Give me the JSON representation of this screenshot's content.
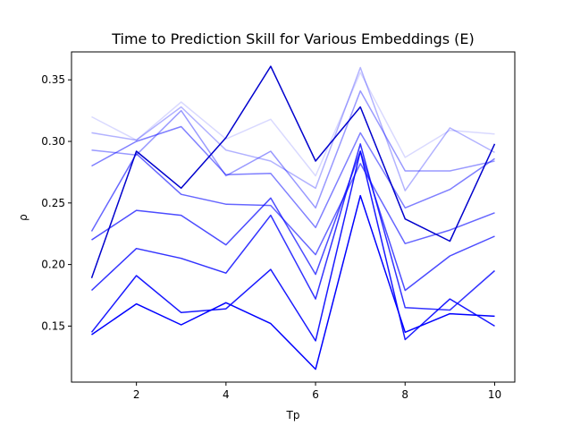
{
  "chart_data": {
    "type": "line",
    "title": "Time to Prediction Skill for Various Embeddings (E)",
    "xlabel": "Tp",
    "ylabel": "ρ",
    "xlim": [
      0.55,
      10.45
    ],
    "ylim": [
      0.1045,
      0.3727
    ],
    "x_ticks": [
      2,
      4,
      6,
      8,
      10
    ],
    "y_ticks": [
      0.15,
      0.2,
      0.25,
      0.3,
      0.35
    ],
    "grid": false,
    "legend": "none",
    "x": [
      1,
      2,
      3,
      4,
      5,
      6,
      7,
      8,
      9,
      10
    ],
    "series": [
      {
        "color": "#0000ff",
        "opacity": 1.0,
        "values": [
          0.143,
          0.168,
          0.151,
          0.169,
          0.152,
          0.115,
          0.256,
          0.145,
          0.16,
          0.158
        ]
      },
      {
        "color": "#0000ff",
        "opacity": 0.9,
        "values": [
          0.145,
          0.191,
          0.161,
          0.164,
          0.196,
          0.138,
          0.292,
          0.139,
          0.172,
          0.15
        ]
      },
      {
        "color": "#0000ff",
        "opacity": 0.8,
        "values": [
          0.179,
          0.213,
          0.205,
          0.193,
          0.24,
          0.172,
          0.298,
          0.165,
          0.163,
          0.195
        ]
      },
      {
        "color": "#0000ff",
        "opacity": 0.7,
        "values": [
          0.22,
          0.244,
          0.24,
          0.216,
          0.254,
          0.192,
          0.292,
          0.179,
          0.207,
          0.223
        ]
      },
      {
        "color": "#0000ff",
        "opacity": 0.6,
        "values": [
          0.227,
          0.29,
          0.257,
          0.249,
          0.248,
          0.208,
          0.282,
          0.217,
          0.228,
          0.242
        ]
      },
      {
        "color": "#0000ff",
        "opacity": 0.5,
        "values": [
          0.28,
          0.3,
          0.312,
          0.273,
          0.274,
          0.23,
          0.307,
          0.246,
          0.261,
          0.286
        ]
      },
      {
        "color": "#0000ff",
        "opacity": 0.4,
        "values": [
          0.293,
          0.289,
          0.325,
          0.272,
          0.292,
          0.246,
          0.341,
          0.276,
          0.276,
          0.284
        ]
      },
      {
        "color": "#0000ff",
        "opacity": 0.3,
        "values": [
          0.307,
          0.301,
          0.328,
          0.293,
          0.284,
          0.262,
          0.36,
          0.26,
          0.311,
          0.291
        ]
      },
      {
        "color": "#0000ff",
        "opacity": 0.15,
        "values": [
          0.32,
          0.301,
          0.332,
          0.302,
          0.318,
          0.272,
          0.356,
          0.287,
          0.309,
          0.306
        ]
      },
      {
        "color": "#0000cd",
        "opacity": 1.0,
        "values": [
          0.189,
          0.292,
          0.262,
          0.303,
          0.361,
          0.284,
          0.328,
          0.237,
          0.219,
          0.298
        ]
      }
    ]
  }
}
